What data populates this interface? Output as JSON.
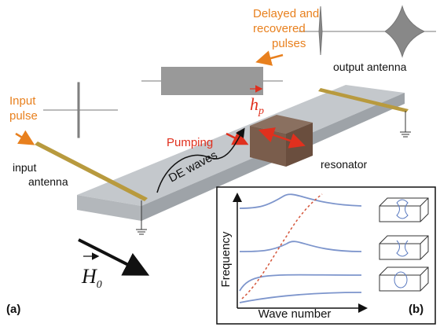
{
  "labels": {
    "output_pulses": [
      "Delayed and",
      "recovered",
      "pulses"
    ],
    "output_antenna": "output antenna",
    "input_pulse": [
      "Input",
      "pulse"
    ],
    "pumping": "Pumping",
    "h_field": "h",
    "h_subscript": "p",
    "de_waves": "DE waves",
    "input_antenna": [
      "input",
      "antenna"
    ],
    "resonator": "resonator",
    "bias_field": "H",
    "bias_subscript": "0",
    "panel_a": "(a)",
    "panel_b": "(b)"
  },
  "inset": {
    "y_label": "Frequency",
    "x_label": "Wave number"
  }
}
